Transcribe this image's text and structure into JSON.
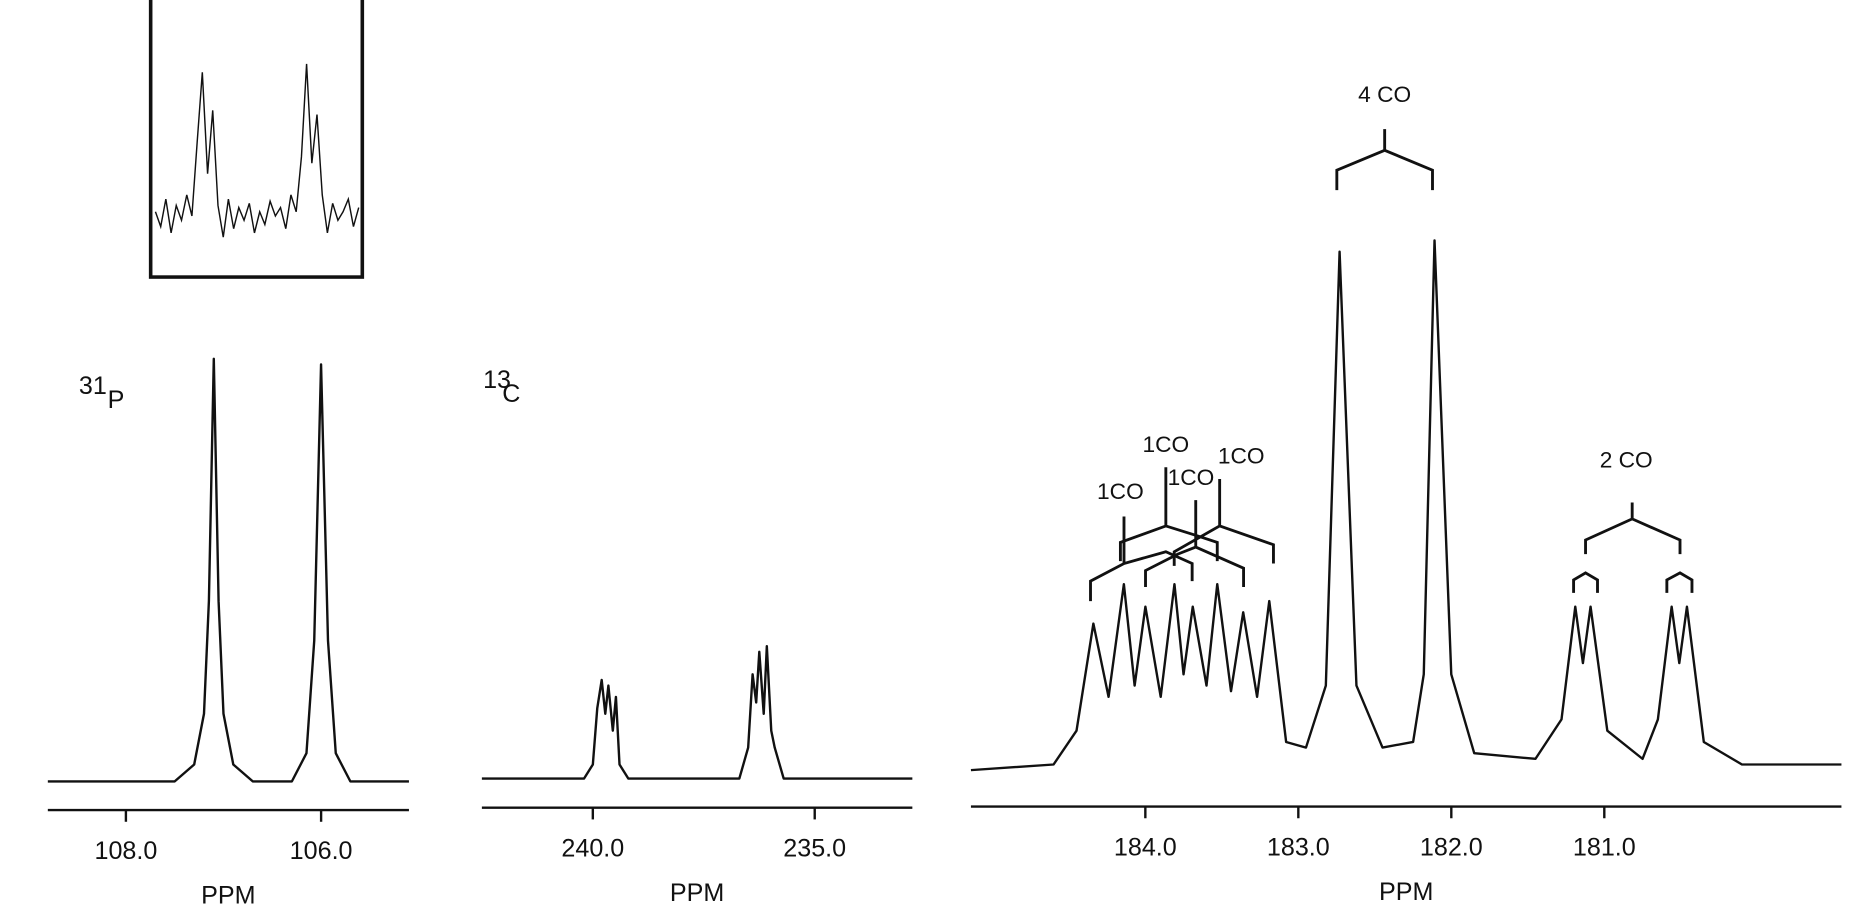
{
  "chart_data": [
    {
      "type": "line",
      "nucleus": {
        "mass": "31",
        "symbol": "P"
      },
      "x_label": "PPM",
      "xlim": [
        108.8,
        105.1
      ],
      "xticks": [
        {
          "value": 108,
          "label": "108.0"
        },
        {
          "value": 106,
          "label": "106.0"
        }
      ],
      "ylim": [
        0,
        100
      ],
      "color": "#111111",
      "x": [
        108.8,
        107.5,
        107.3,
        107.2,
        107.15,
        107.1,
        107.05,
        107.0,
        106.9,
        106.7,
        106.3,
        106.15,
        106.07,
        106.0,
        105.93,
        105.85,
        105.7,
        105.1
      ],
      "values": [
        3,
        3,
        6,
        15,
        35,
        78,
        35,
        15,
        6,
        3,
        3,
        8,
        28,
        77,
        28,
        8,
        3,
        3
      ]
    },
    {
      "type": "line",
      "nucleus": {
        "mass": "13",
        "symbol": "C"
      },
      "x_label": "PPM",
      "xlim": [
        242.5,
        232.8
      ],
      "xticks": [
        {
          "value": 240,
          "label": "240.0"
        },
        {
          "value": 235,
          "label": "235.0"
        }
      ],
      "ylim": [
        0,
        100
      ],
      "color": "#111111",
      "x": [
        242.5,
        240.2,
        240.0,
        239.9,
        239.8,
        239.72,
        239.65,
        239.55,
        239.48,
        239.4,
        239.2,
        236.7,
        236.5,
        236.4,
        236.32,
        236.25,
        236.15,
        236.08,
        235.98,
        235.9,
        235.7,
        232.8
      ],
      "values": [
        3.5,
        3.5,
        6,
        16,
        21,
        15,
        20,
        12,
        18,
        6,
        3.5,
        3.5,
        9,
        22,
        17,
        26,
        15,
        27,
        12,
        9,
        3.5,
        3.5
      ]
    },
    {
      "type": "line",
      "x_label": "PPM",
      "xlim": [
        185.14,
        179.45
      ],
      "xticks": [
        {
          "value": 184,
          "label": "184.0"
        },
        {
          "value": 183,
          "label": "183.0"
        },
        {
          "value": 182,
          "label": "182.0"
        },
        {
          "value": 181,
          "label": "181.0"
        }
      ],
      "ylim": [
        0,
        100
      ],
      "color": "#111111",
      "annotations": [
        "4 CO",
        "1CO",
        "1CO",
        "1CO",
        "1CO",
        "2 CO"
      ],
      "x": [
        185.14,
        184.6,
        184.45,
        184.34,
        184.24,
        184.14,
        184.07,
        184.0,
        183.9,
        183.81,
        183.75,
        183.69,
        183.6,
        183.53,
        183.44,
        183.36,
        183.27,
        183.19,
        183.08,
        182.95,
        182.82,
        182.73,
        182.62,
        182.45,
        182.25,
        182.18,
        182.11,
        182.0,
        181.85,
        181.45,
        181.28,
        181.19,
        181.14,
        181.09,
        180.98,
        180.75,
        180.65,
        180.56,
        180.51,
        180.46,
        180.35,
        180.1,
        179.45
      ],
      "values": [
        5,
        6,
        12,
        31,
        18,
        38,
        20,
        34,
        18,
        38,
        22,
        34,
        20,
        38,
        19,
        33,
        18,
        35,
        10,
        9,
        20,
        97,
        20,
        9,
        10,
        22,
        99,
        22,
        8,
        7,
        14,
        34,
        24,
        34,
        12,
        7,
        14,
        34,
        24,
        34,
        10,
        6,
        6
      ]
    },
    {
      "type": "inset",
      "ylim": [
        0,
        100
      ],
      "color": "#111111",
      "values": [
        22,
        15,
        28,
        12,
        25,
        18,
        30,
        20,
        55,
        88,
        40,
        70,
        25,
        10,
        28,
        14,
        24,
        18,
        26,
        12,
        22,
        16,
        27,
        20,
        24,
        14,
        30,
        22,
        48,
        92,
        45,
        68,
        30,
        12,
        26,
        18,
        22,
        28,
        15,
        24
      ]
    }
  ]
}
